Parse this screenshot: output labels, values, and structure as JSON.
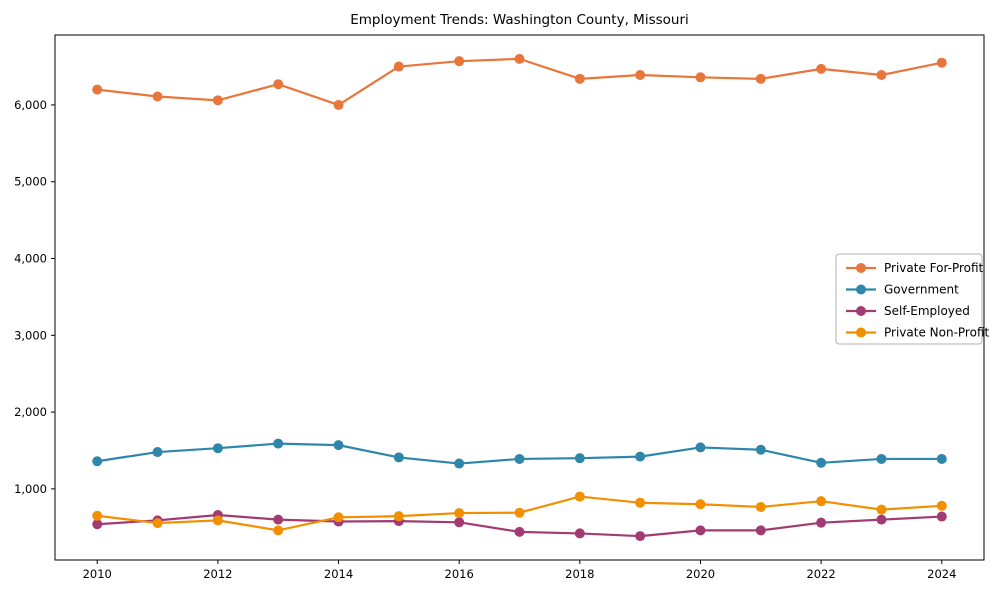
{
  "chart_data": {
    "type": "line",
    "title": "Employment Trends: Washington County, Missouri",
    "xlabel": "",
    "ylabel": "",
    "grid": false,
    "legend_position": "center right",
    "xlim": [
      2009.3,
      2024.7
    ],
    "ylim": [
      74,
      6911
    ],
    "x": [
      2010,
      2011,
      2012,
      2013,
      2014,
      2015,
      2016,
      2017,
      2018,
      2019,
      2020,
      2021,
      2022,
      2023,
      2024
    ],
    "x_ticks": [
      2010,
      2012,
      2014,
      2016,
      2018,
      2020,
      2022,
      2024
    ],
    "y_ticks": [
      1000,
      2000,
      3000,
      4000,
      5000,
      6000
    ],
    "series": [
      {
        "name": "Private For-Profit",
        "color": "#E8763B",
        "values": [
          6200,
          6110,
          6060,
          6270,
          6000,
          6500,
          6570,
          6600,
          6340,
          6390,
          6360,
          6340,
          6470,
          6390,
          6550
        ]
      },
      {
        "name": "Government",
        "color": "#2E86AB",
        "values": [
          1360,
          1480,
          1530,
          1590,
          1570,
          1410,
          1330,
          1390,
          1400,
          1420,
          1540,
          1510,
          1340,
          1390,
          1390
        ]
      },
      {
        "name": "Self-Employed",
        "color": "#A23B72",
        "values": [
          540,
          590,
          660,
          600,
          575,
          580,
          565,
          440,
          420,
          385,
          460,
          460,
          560,
          600,
          640
        ]
      },
      {
        "name": "Private Non-Profit",
        "color": "#F18F01",
        "values": [
          650,
          555,
          590,
          460,
          630,
          645,
          685,
          690,
          900,
          820,
          800,
          765,
          840,
          730,
          780
        ]
      }
    ]
  }
}
